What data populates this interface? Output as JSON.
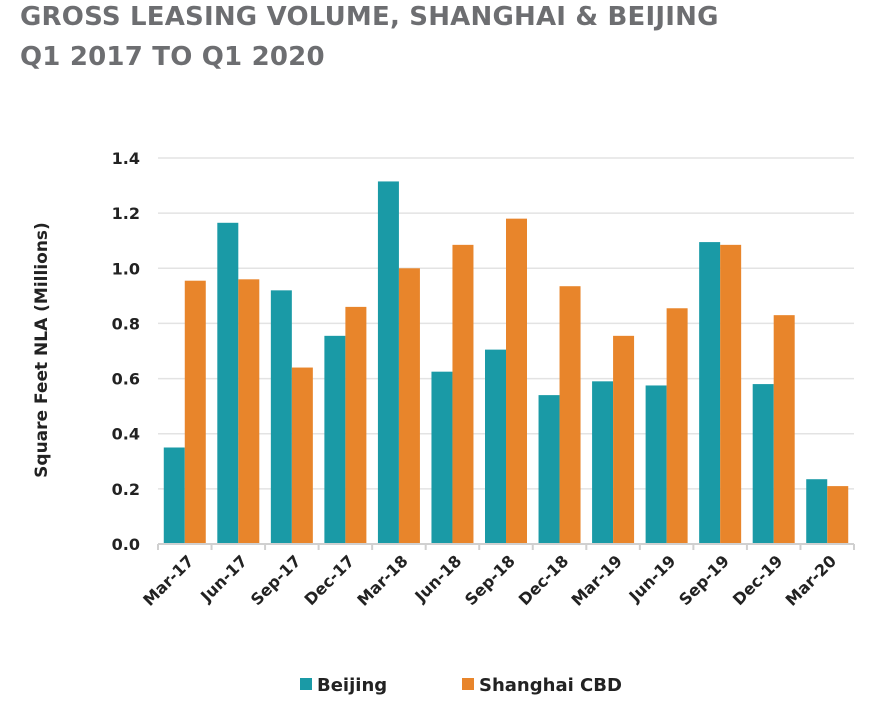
{
  "chart_data": {
    "type": "bar",
    "title": "GROSS LEASING VOLUME, SHANGHAI & BEIJING",
    "subtitle": "Q1 2017 TO Q1 2020",
    "xlabel": "",
    "ylabel": "Square Feet NLA (Millions)",
    "ylim": [
      0,
      1.4
    ],
    "yticks": [
      "0.0",
      "0.2",
      "0.4",
      "0.6",
      "0.8",
      "1.0",
      "1.2",
      "1.4"
    ],
    "grid": true,
    "legend_position": "bottom",
    "categories": [
      "Mar-17",
      "Jun-17",
      "Sep-17",
      "Dec-17",
      "Mar-18",
      "Jun-18",
      "Sep-18",
      "Dec-18",
      "Mar-19",
      "Jun-19",
      "Sep-19",
      "Dec-19",
      "Mar-20"
    ],
    "series": [
      {
        "name": "Beijing",
        "color": "#1a9aa6",
        "values": [
          0.35,
          1.165,
          0.92,
          0.755,
          1.315,
          0.625,
          0.705,
          0.54,
          0.59,
          0.575,
          1.095,
          0.58,
          0.235
        ]
      },
      {
        "name": "Shanghai CBD",
        "color": "#e8852b",
        "values": [
          0.955,
          0.96,
          0.64,
          0.86,
          1.0,
          1.085,
          1.18,
          0.935,
          0.755,
          0.855,
          1.085,
          0.83,
          0.21
        ]
      }
    ]
  }
}
